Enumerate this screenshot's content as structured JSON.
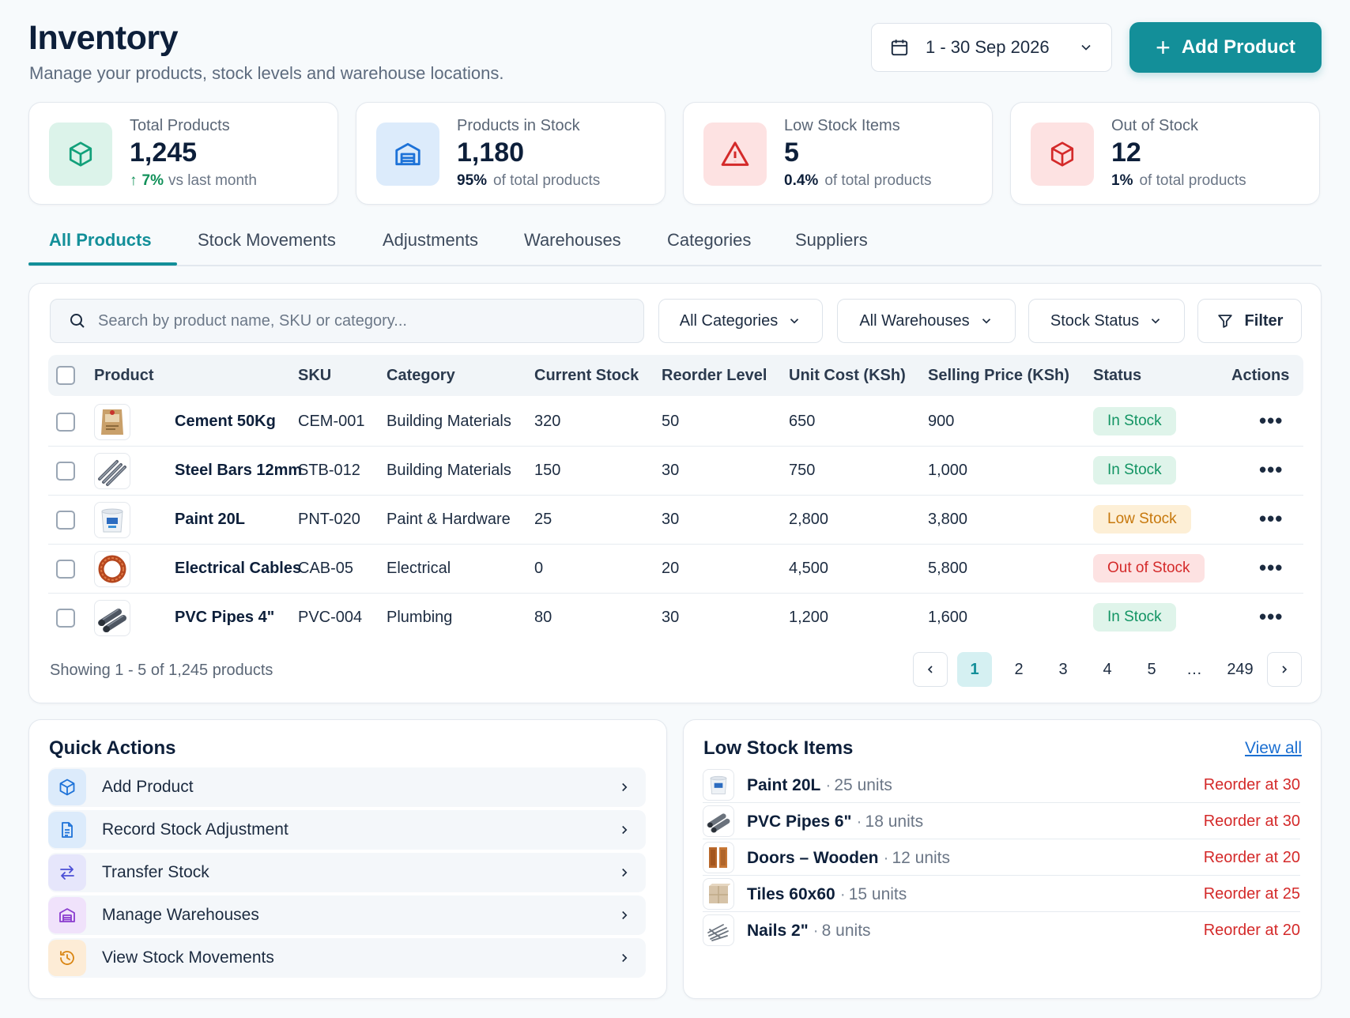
{
  "header": {
    "title": "Inventory",
    "subtitle": "Manage your products, stock levels and warehouse locations.",
    "date_range": "1 - 30 Sep 2026",
    "add_button": "Add Product"
  },
  "stats": [
    {
      "label": "Total Products",
      "value": "1,245",
      "highlight": "7%",
      "sub": "vs last month",
      "icon": "cube-icon",
      "color": "#12a07a"
    },
    {
      "label": "Products in Stock",
      "value": "1,180",
      "highlight": "95%",
      "sub": "of total products",
      "icon": "warehouse-icon",
      "color": "#1d72d8"
    },
    {
      "label": "Low Stock Items",
      "value": "5",
      "highlight": "0.4%",
      "sub": "of total products",
      "icon": "warning-icon",
      "color": "#d42a2a"
    },
    {
      "label": "Out of Stock",
      "value": "12",
      "highlight": "1%",
      "sub": "of total products",
      "icon": "cube-icon",
      "color": "#d42a2a"
    }
  ],
  "tabs": [
    "All Products",
    "Stock Movements",
    "Adjustments",
    "Warehouses",
    "Categories",
    "Suppliers"
  ],
  "filters": {
    "search_placeholder": "Search by product name, SKU or category...",
    "categories": "All Categories",
    "warehouses": "All Warehouses",
    "stock_status": "Stock Status",
    "filter": "Filter"
  },
  "table": {
    "columns": [
      "Product",
      "SKU",
      "Category",
      "Current Stock",
      "Reorder Level",
      "Unit Cost (KSh)",
      "Selling Price (KSh)",
      "Status",
      "Actions"
    ],
    "rows": [
      {
        "name": "Cement 50Kg",
        "sku": "CEM-001",
        "category": "Building Materials",
        "stock": "320",
        "reorder": "50",
        "cost": "650",
        "price": "900",
        "status": "In Stock",
        "thumb": "cement-bag-icon"
      },
      {
        "name": "Steel Bars 12mm",
        "sku": "STB-012",
        "category": "Building Materials",
        "stock": "150",
        "reorder": "30",
        "cost": "750",
        "price": "1,000",
        "status": "In Stock",
        "thumb": "steel-bars-icon"
      },
      {
        "name": "Paint 20L",
        "sku": "PNT-020",
        "category": "Paint & Hardware",
        "stock": "25",
        "reorder": "30",
        "cost": "2,800",
        "price": "3,800",
        "status": "Low Stock",
        "thumb": "paint-bucket-icon"
      },
      {
        "name": "Electrical Cables",
        "sku": "CAB-05",
        "category": "Electrical",
        "stock": "0",
        "reorder": "20",
        "cost": "4,500",
        "price": "5,800",
        "status": "Out of Stock",
        "thumb": "cable-coil-icon"
      },
      {
        "name": "PVC Pipes 4\"",
        "sku": "PVC-004",
        "category": "Plumbing",
        "stock": "80",
        "reorder": "30",
        "cost": "1,200",
        "price": "1,600",
        "status": "In Stock",
        "thumb": "pvc-pipes-icon"
      }
    ],
    "actions": "•••",
    "showing": "Showing 1 - 5 of 1,245 products",
    "pages": [
      "1",
      "2",
      "3",
      "4",
      "5",
      "…",
      "249"
    ]
  },
  "quick_actions": {
    "title": "Quick Actions",
    "items": [
      {
        "label": "Add Product",
        "icon": "cube-icon"
      },
      {
        "label": "Record Stock Adjustment",
        "icon": "document-icon"
      },
      {
        "label": "Transfer Stock",
        "icon": "transfer-icon"
      },
      {
        "label": "Manage Warehouses",
        "icon": "warehouse-icon"
      },
      {
        "label": "View Stock Movements",
        "icon": "history-icon"
      }
    ]
  },
  "low_stock": {
    "title": "Low Stock Items",
    "view_all": "View all",
    "items": [
      {
        "name": "Paint 20L",
        "units": "25 units",
        "reorder": "Reorder at 30"
      },
      {
        "name": "PVC Pipes 6\"",
        "units": "18 units",
        "reorder": "Reorder at 30"
      },
      {
        "name": "Doors – Wooden",
        "units": "12 units",
        "reorder": "Reorder at 20"
      },
      {
        "name": "Tiles 60x60",
        "units": "15 units",
        "reorder": "Reorder at 25"
      },
      {
        "name": "Nails 2\"",
        "units": "8 units",
        "reorder": "Reorder at 20"
      }
    ]
  }
}
